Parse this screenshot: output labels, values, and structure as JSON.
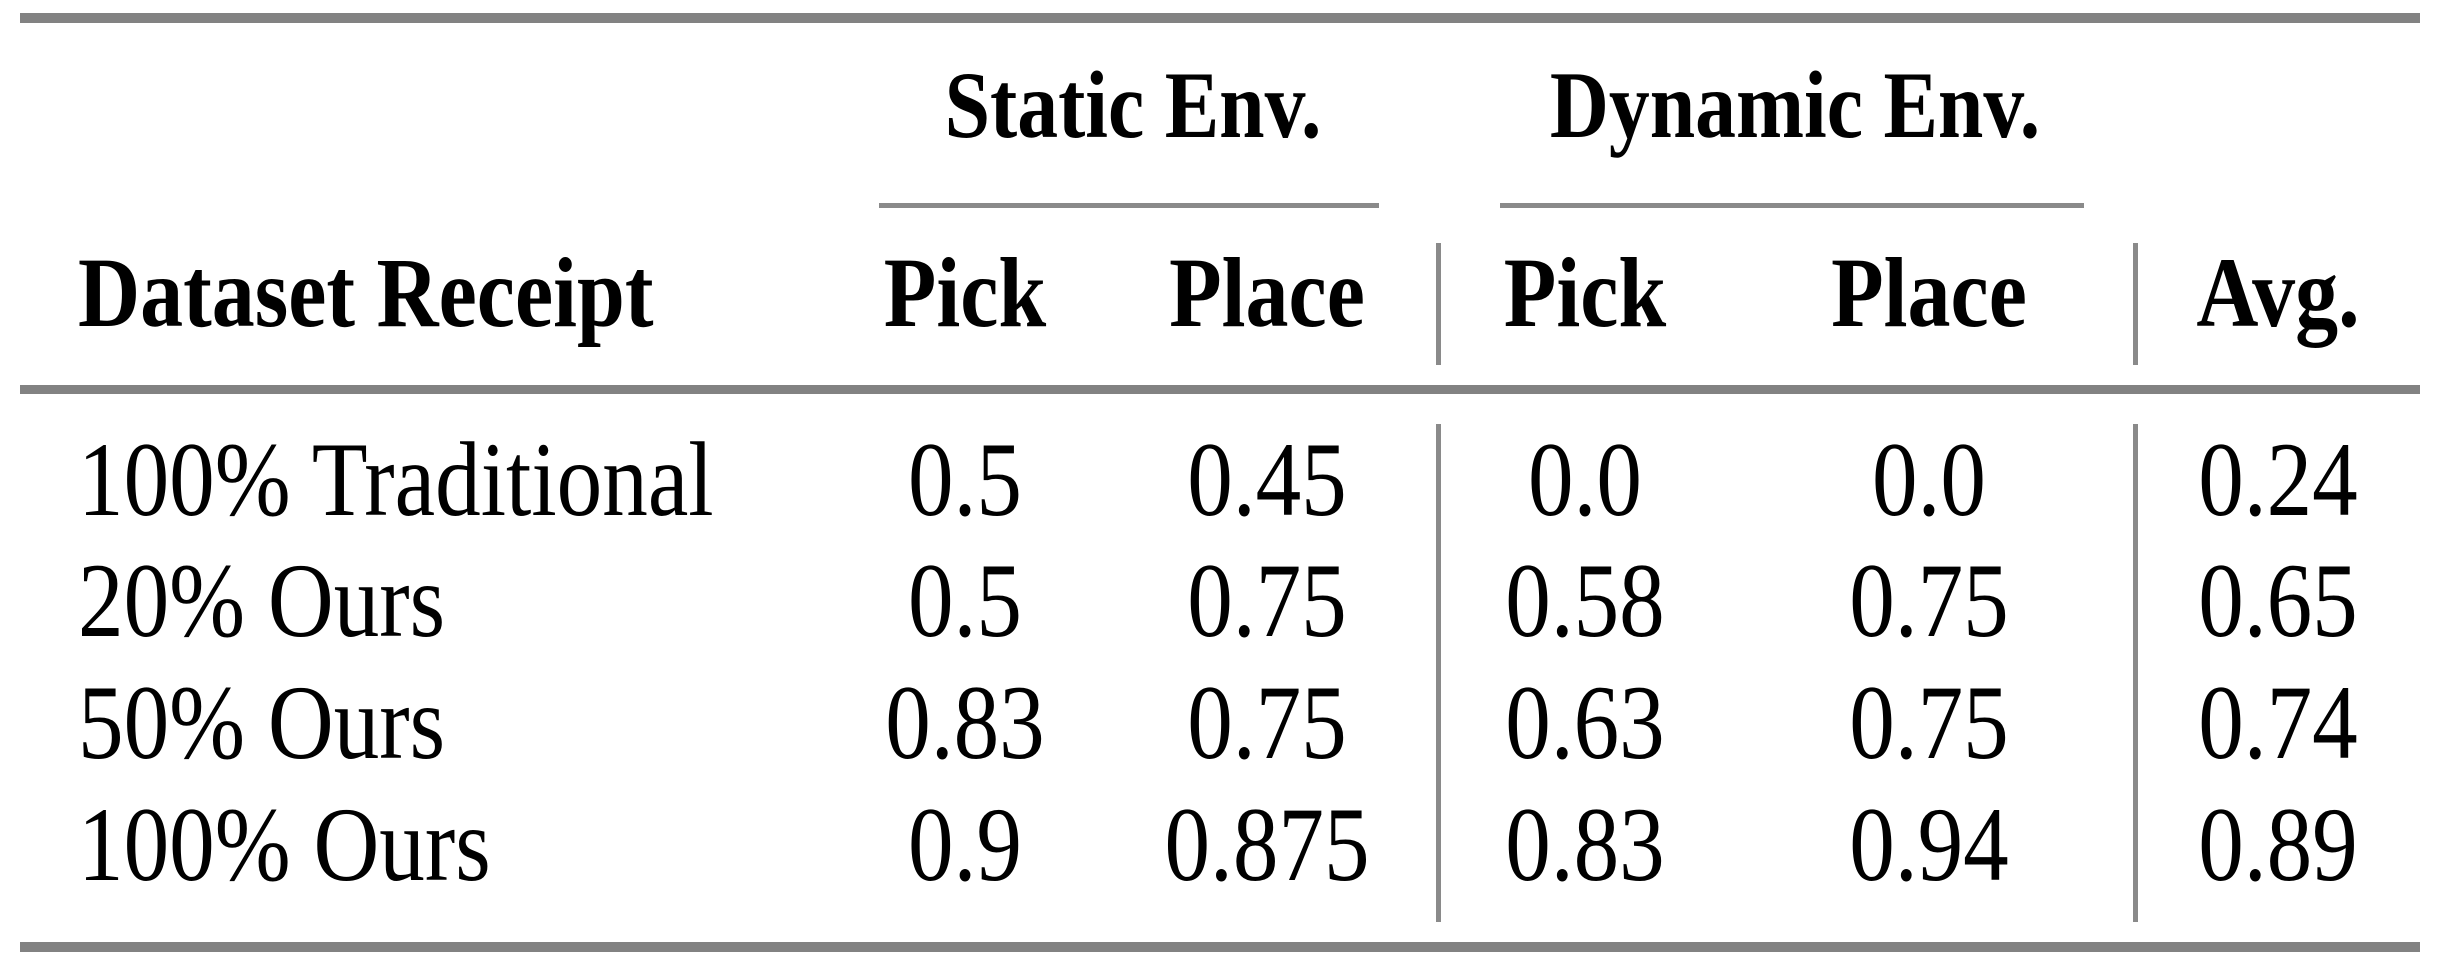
{
  "table": {
    "col_groups": {
      "static": "Static Env.",
      "dynamic": "Dynamic Env."
    },
    "headers": {
      "row_label": "Dataset Receipt",
      "static_pick": "Pick",
      "static_place": "Place",
      "dynamic_pick": "Pick",
      "dynamic_place": "Place",
      "avg": "Avg."
    },
    "rows": [
      {
        "label": "100% Traditional",
        "static_pick": "0.5",
        "static_place": "0.45",
        "dynamic_pick": "0.0",
        "dynamic_place": "0.0",
        "avg": "0.24"
      },
      {
        "label": "20% Ours",
        "static_pick": "0.5",
        "static_place": "0.75",
        "dynamic_pick": "0.58",
        "dynamic_place": "0.75",
        "avg": "0.65"
      },
      {
        "label": "50% Ours",
        "static_pick": "0.83",
        "static_place": "0.75",
        "dynamic_pick": "0.63",
        "dynamic_place": "0.75",
        "avg": "0.74"
      },
      {
        "label": "100% Ours",
        "static_pick": "0.9",
        "static_place": "0.875",
        "dynamic_pick": "0.83",
        "dynamic_place": "0.94",
        "avg": "0.89"
      }
    ]
  },
  "colors": {
    "background": "#ffffff",
    "text": "#000000",
    "thick_rule": "#828282",
    "thin_rule": "#8a8a8a"
  }
}
